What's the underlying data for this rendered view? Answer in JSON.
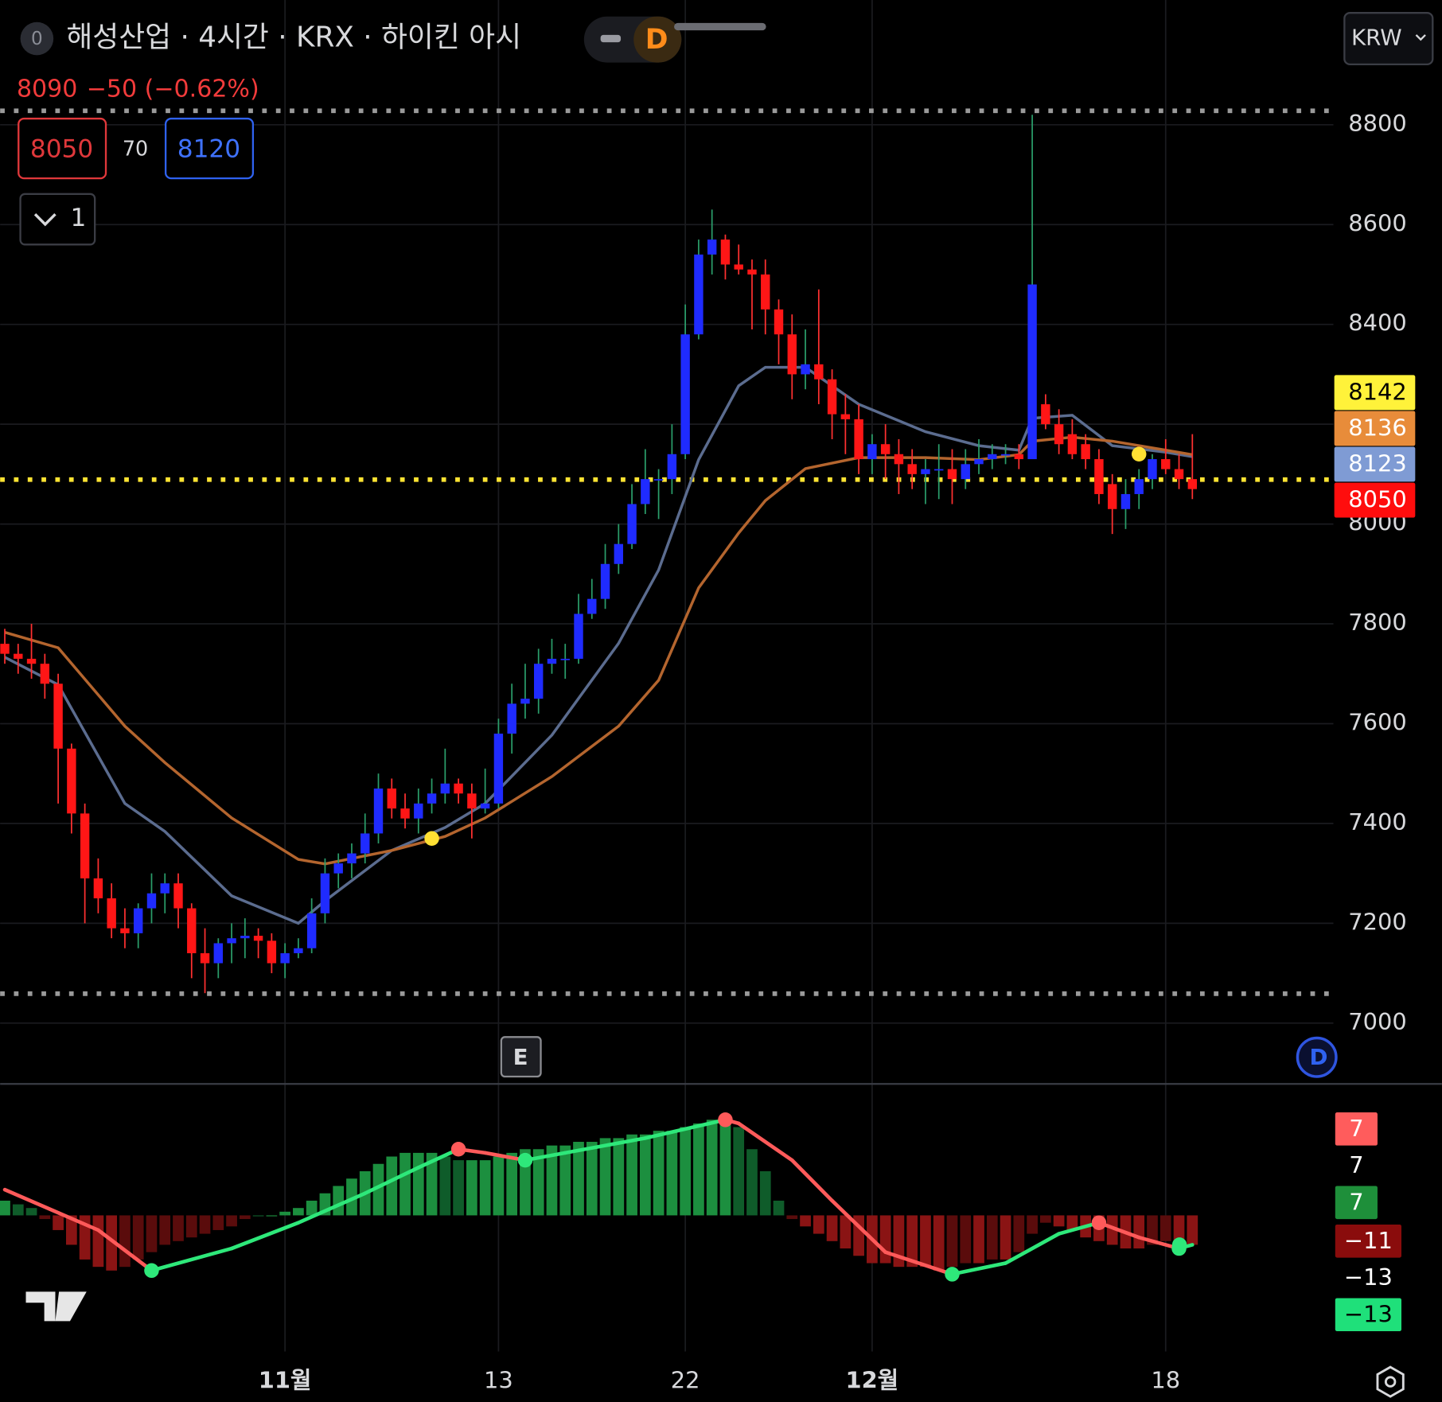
{
  "header": {
    "badge": "0",
    "symbol": "해성산업 · 4시간 · KRX · 하이킨 아시",
    "mode": "D",
    "currency": "KRW",
    "price": "8090",
    "change": "−50 (−0.62%)",
    "bid": "8050",
    "spread": "70",
    "ask": "8120",
    "layers": "1",
    "earnings": "E",
    "dividend": "D"
  },
  "chart_data": {
    "type": "candlestick",
    "up_color": "#1f2bff",
    "down_color": "#ff1616",
    "up_wick": "#2a9d6a",
    "down_wick": "#ff3030",
    "grid": true,
    "ylim": [
      6880,
      9050
    ],
    "yticks": [
      7000,
      7200,
      7400,
      7600,
      7800,
      8000,
      8200,
      8400,
      8600,
      8800
    ],
    "xlim": [
      -0.35,
      107.7
    ],
    "xticks": [
      {
        "value": 21,
        "label": "11월"
      },
      {
        "value": 37,
        "label": "13"
      },
      {
        "value": 51,
        "label": "22"
      },
      {
        "value": 65,
        "label": "12월"
      },
      {
        "value": 87,
        "label": "18"
      }
    ],
    "candles": [
      [
        7760,
        7790,
        7720,
        7740
      ],
      [
        7740,
        7760,
        7700,
        7730
      ],
      [
        7730,
        7800,
        7690,
        7720
      ],
      [
        7720,
        7740,
        7650,
        7680
      ],
      [
        7680,
        7700,
        7440,
        7550
      ],
      [
        7550,
        7560,
        7380,
        7420
      ],
      [
        7420,
        7440,
        7200,
        7290
      ],
      [
        7290,
        7330,
        7220,
        7250
      ],
      [
        7250,
        7280,
        7170,
        7190
      ],
      [
        7190,
        7230,
        7150,
        7180
      ],
      [
        7180,
        7240,
        7150,
        7230
      ],
      [
        7230,
        7300,
        7200,
        7260
      ],
      [
        7260,
        7300,
        7220,
        7280
      ],
      [
        7280,
        7300,
        7190,
        7230
      ],
      [
        7230,
        7240,
        7090,
        7140
      ],
      [
        7140,
        7190,
        7060,
        7120
      ],
      [
        7120,
        7170,
        7090,
        7160
      ],
      [
        7160,
        7200,
        7120,
        7170
      ],
      [
        7170,
        7210,
        7130,
        7175
      ],
      [
        7175,
        7190,
        7130,
        7165
      ],
      [
        7165,
        7180,
        7100,
        7120
      ],
      [
        7120,
        7160,
        7090,
        7140
      ],
      [
        7140,
        7170,
        7130,
        7150
      ],
      [
        7150,
        7250,
        7140,
        7220
      ],
      [
        7220,
        7330,
        7200,
        7300
      ],
      [
        7300,
        7340,
        7270,
        7320
      ],
      [
        7320,
        7360,
        7290,
        7340
      ],
      [
        7340,
        7420,
        7320,
        7380
      ],
      [
        7380,
        7500,
        7360,
        7470
      ],
      [
        7470,
        7490,
        7410,
        7430
      ],
      [
        7430,
        7460,
        7390,
        7410
      ],
      [
        7410,
        7470,
        7380,
        7440
      ],
      [
        7440,
        7490,
        7420,
        7460
      ],
      [
        7460,
        7550,
        7440,
        7480
      ],
      [
        7480,
        7490,
        7440,
        7460
      ],
      [
        7460,
        7480,
        7370,
        7430
      ],
      [
        7430,
        7510,
        7420,
        7440
      ],
      [
        7440,
        7610,
        7430,
        7580
      ],
      [
        7580,
        7680,
        7540,
        7640
      ],
      [
        7640,
        7720,
        7610,
        7650
      ],
      [
        7650,
        7750,
        7620,
        7720
      ],
      [
        7720,
        7770,
        7700,
        7730
      ],
      [
        7730,
        7760,
        7690,
        7730
      ],
      [
        7730,
        7860,
        7720,
        7820
      ],
      [
        7820,
        7890,
        7810,
        7850
      ],
      [
        7850,
        7960,
        7830,
        7920
      ],
      [
        7920,
        8000,
        7900,
        7960
      ],
      [
        7960,
        8080,
        7950,
        8040
      ],
      [
        8040,
        8150,
        8020,
        8090
      ],
      [
        8090,
        8110,
        8010,
        8090
      ],
      [
        8090,
        8200,
        8060,
        8140
      ],
      [
        8140,
        8440,
        8130,
        8380
      ],
      [
        8380,
        8570,
        8370,
        8540
      ],
      [
        8540,
        8630,
        8500,
        8570
      ],
      [
        8570,
        8580,
        8490,
        8520
      ],
      [
        8520,
        8560,
        8500,
        8510
      ],
      [
        8510,
        8530,
        8390,
        8500
      ],
      [
        8500,
        8530,
        8380,
        8430
      ],
      [
        8430,
        8450,
        8320,
        8380
      ],
      [
        8380,
        8420,
        8250,
        8300
      ],
      [
        8300,
        8390,
        8270,
        8320
      ],
      [
        8320,
        8470,
        8240,
        8290
      ],
      [
        8290,
        8310,
        8170,
        8220
      ],
      [
        8220,
        8260,
        8140,
        8210
      ],
      [
        8210,
        8240,
        8100,
        8130
      ],
      [
        8130,
        8180,
        8100,
        8160
      ],
      [
        8160,
        8200,
        8090,
        8140
      ],
      [
        8140,
        8170,
        8060,
        8120
      ],
      [
        8120,
        8150,
        8070,
        8100
      ],
      [
        8100,
        8130,
        8040,
        8110
      ],
      [
        8110,
        8160,
        8050,
        8110
      ],
      [
        8110,
        8150,
        8040,
        8090
      ],
      [
        8090,
        8150,
        8070,
        8120
      ],
      [
        8120,
        8170,
        8100,
        8130
      ],
      [
        8130,
        8160,
        8110,
        8140
      ],
      [
        8140,
        8160,
        8120,
        8140
      ],
      [
        8140,
        8160,
        8110,
        8130
      ],
      [
        8130,
        8820,
        8130,
        8480
      ],
      [
        8240,
        8260,
        8190,
        8200
      ],
      [
        8200,
        8230,
        8140,
        8160
      ],
      [
        8180,
        8210,
        8130,
        8140
      ],
      [
        8160,
        8180,
        8110,
        8130
      ],
      [
        8130,
        8150,
        8040,
        8060
      ],
      [
        8080,
        8100,
        7980,
        8030
      ],
      [
        8030,
        8090,
        7990,
        8060
      ],
      [
        8060,
        8110,
        8030,
        8090
      ],
      [
        8090,
        8140,
        8070,
        8130
      ],
      [
        8130,
        8170,
        8100,
        8110
      ],
      [
        8110,
        8140,
        8070,
        8090
      ],
      [
        8090,
        8180,
        8050,
        8070
      ]
    ],
    "ma_x": [
      0,
      4,
      9,
      12,
      17,
      22,
      24,
      29,
      33,
      36,
      41,
      46,
      49,
      52,
      55,
      57,
      60,
      64,
      69,
      73,
      76,
      77,
      80,
      83,
      87,
      89
    ],
    "ma": [
      {
        "color": "#5b6c8f",
        "values": [
          7733,
          7678,
          7440,
          7384,
          7255,
          7200,
          7245,
          7346,
          7392,
          7440,
          7577,
          7761,
          7908,
          8129,
          8277,
          8314,
          8314,
          8240,
          8185,
          8157,
          8148,
          8212,
          8218,
          8157,
          8144,
          8135
        ]
      },
      {
        "color": "#b4652e",
        "values": [
          7783,
          7752,
          7595,
          7522,
          7411,
          7328,
          7319,
          7346,
          7374,
          7411,
          7494,
          7595,
          7687,
          7872,
          7982,
          8047,
          8111,
          8133,
          8133,
          8129,
          8139,
          8166,
          8174,
          8166,
          8148,
          8139
        ]
      }
    ],
    "signals": {
      "color": "#ffe033",
      "x": [
        32,
        85
      ],
      "values": [
        7370,
        8140
      ]
    },
    "levels": [
      {
        "value": 8828,
        "color": "#9a9a9a"
      },
      {
        "value": 7059,
        "color": "#9a9a9a"
      },
      {
        "value": 8089,
        "color": "#ffe433"
      }
    ],
    "price_labels": [
      {
        "label": "8142",
        "color": "#fff23a",
        "text_color": "#000000"
      },
      {
        "label": "8136",
        "color": "#e88c3a",
        "text_color": "#ffffff"
      },
      {
        "label": "8123",
        "color": "#7f9bd4",
        "text_color": "#ffffff"
      },
      {
        "label": "8050",
        "color": "#ff0d0d",
        "text_color": "#ffffff"
      }
    ],
    "oscillator": {
      "ylim": [
        -30,
        30
      ],
      "hist": [
        4,
        3,
        2,
        -1,
        -4,
        -8,
        -12,
        -14,
        -15,
        -14,
        -12,
        -10,
        -8,
        -7,
        -6,
        -5,
        -4,
        -3,
        -1,
        0,
        0,
        1,
        2,
        4,
        6,
        8,
        10,
        12,
        14,
        16,
        17,
        17,
        17,
        16,
        15,
        15,
        15,
        16,
        17,
        18,
        18,
        19,
        19,
        20,
        20,
        21,
        21,
        22,
        22,
        23,
        23,
        24,
        25,
        26,
        26,
        24,
        18,
        12,
        4,
        -1,
        -3,
        -5,
        -7,
        -9,
        -11,
        -13,
        -13,
        -14,
        -14,
        -14,
        -15,
        -14,
        -13,
        -13,
        -12,
        -12,
        -10,
        -5,
        -2,
        -3,
        -4,
        -6,
        -7,
        -8,
        -9,
        -9,
        -8,
        -7,
        -7,
        -8
      ],
      "line_x": [
        0,
        7,
        11,
        17,
        22,
        27,
        31,
        34,
        36,
        39,
        42,
        48,
        54,
        55,
        59,
        62,
        66,
        71,
        75,
        79,
        82,
        85,
        88,
        89
      ],
      "line": [
        7,
        -4,
        -15,
        -9,
        -2,
        6,
        13,
        18,
        17,
        15,
        17,
        21,
        26,
        25,
        15,
        4,
        -10,
        -16,
        -13,
        -5,
        -2,
        -6,
        -9,
        -8
      ],
      "up_line": "#2ee87a",
      "down_line": "#ff5a5a",
      "labels": [
        {
          "label": "7",
          "color": "#ff5c5c",
          "text_color": "#ffffff"
        },
        {
          "label": "7",
          "color": "#000000",
          "text_color": "#ffffff"
        },
        {
          "label": "7",
          "color": "#1e8f3a",
          "text_color": "#ffffff"
        },
        {
          "label": "−11",
          "color": "#8a0c0c",
          "text_color": "#ffffff"
        },
        {
          "label": "−13",
          "color": "#000000",
          "text_color": "#ffffff"
        },
        {
          "label": "−13",
          "color": "#1fe07a",
          "text_color": "#000000"
        }
      ]
    }
  }
}
